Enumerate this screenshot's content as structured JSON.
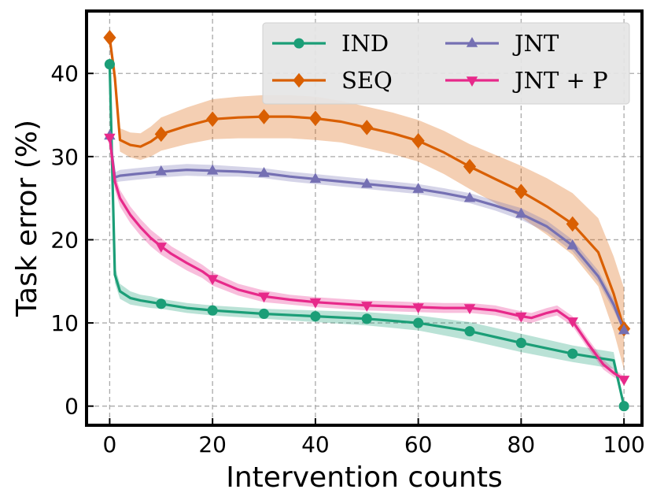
{
  "chart_data": {
    "type": "line",
    "title": "",
    "xlabel": "Intervention counts",
    "ylabel": "Task error (%)",
    "xlim": [
      -4.5,
      103.5
    ],
    "ylim": [
      -2.3,
      47.5
    ],
    "xticks": [
      0,
      20,
      40,
      60,
      80,
      100
    ],
    "yticks": [
      0,
      10,
      20,
      30,
      40
    ],
    "grid": true,
    "legend_position": "top-right",
    "series": [
      {
        "name": "IND",
        "color": "#1b9e77",
        "marker": "circle",
        "x": [
          0,
          1,
          2,
          4,
          6,
          8,
          10,
          15,
          20,
          30,
          40,
          50,
          60,
          70,
          80,
          90,
          98,
          100
        ],
        "y": [
          41.1,
          15.8,
          13.8,
          13.0,
          12.7,
          12.5,
          12.3,
          11.8,
          11.5,
          11.1,
          10.8,
          10.5,
          10.0,
          9.0,
          7.6,
          6.3,
          5.5,
          0.0
        ],
        "band": [
          0.2,
          1.0,
          0.9,
          0.8,
          0.7,
          0.7,
          0.6,
          0.6,
          0.6,
          0.6,
          0.7,
          0.8,
          0.9,
          1.1,
          1.1,
          1.0,
          1.0,
          0.1
        ],
        "marker_x": [
          0,
          10,
          20,
          30,
          40,
          50,
          60,
          70,
          80,
          90,
          100
        ]
      },
      {
        "name": "SEQ",
        "color": "#d95f02",
        "marker": "diamond",
        "x": [
          0,
          1,
          2,
          4,
          6,
          8,
          10,
          15,
          20,
          25,
          30,
          35,
          40,
          45,
          50,
          55,
          60,
          65,
          70,
          75,
          80,
          85,
          90,
          95,
          98,
          100
        ],
        "y": [
          44.3,
          39.5,
          32.0,
          31.4,
          31.2,
          31.8,
          32.7,
          33.7,
          34.5,
          34.7,
          34.8,
          34.8,
          34.6,
          34.2,
          33.5,
          32.8,
          31.9,
          30.5,
          28.8,
          27.3,
          25.8,
          24.0,
          21.9,
          18.5,
          13.5,
          9.3
        ],
        "band": [
          0.2,
          1.5,
          1.4,
          1.5,
          1.6,
          1.8,
          2.0,
          2.2,
          2.4,
          2.5,
          2.6,
          2.6,
          2.6,
          2.5,
          2.5,
          2.5,
          2.5,
          2.6,
          2.7,
          2.9,
          3.1,
          3.4,
          3.7,
          4.1,
          4.5,
          4.9
        ],
        "marker_x": [
          0,
          10,
          20,
          30,
          40,
          50,
          60,
          70,
          80,
          90,
          100
        ]
      },
      {
        "name": "JNT",
        "color": "#7570b3",
        "marker": "triangle-up",
        "x": [
          0,
          1,
          2,
          5,
          10,
          15,
          20,
          25,
          30,
          35,
          40,
          45,
          50,
          55,
          60,
          65,
          70,
          75,
          80,
          85,
          90,
          95,
          98,
          100
        ],
        "y": [
          32.5,
          27.5,
          27.7,
          27.9,
          28.2,
          28.4,
          28.3,
          28.2,
          28.0,
          27.6,
          27.3,
          27.0,
          26.7,
          26.4,
          26.1,
          25.6,
          25.0,
          24.1,
          23.1,
          21.6,
          19.3,
          15.6,
          12.2,
          9.1
        ],
        "band": [
          0.2,
          0.6,
          0.7,
          0.7,
          0.7,
          0.7,
          0.7,
          0.6,
          0.6,
          0.6,
          0.6,
          0.6,
          0.6,
          0.6,
          0.6,
          0.6,
          0.6,
          0.6,
          0.7,
          0.7,
          0.7,
          0.7,
          0.7,
          0.3
        ],
        "marker_x": [
          0,
          10,
          20,
          30,
          40,
          50,
          60,
          70,
          80,
          90,
          100
        ]
      },
      {
        "name": "JNT + P",
        "color": "#e7298a",
        "marker": "triangle-down",
        "x": [
          0,
          1,
          2,
          4,
          6,
          8,
          10,
          12,
          15,
          18,
          20,
          25,
          30,
          35,
          40,
          45,
          50,
          55,
          60,
          65,
          70,
          75,
          80,
          82,
          85,
          87,
          90,
          93,
          96,
          98,
          100
        ],
        "y": [
          32.3,
          27.0,
          25.0,
          23.0,
          21.5,
          20.2,
          19.2,
          18.3,
          17.2,
          16.2,
          15.3,
          14.0,
          13.2,
          12.8,
          12.5,
          12.3,
          12.1,
          12.0,
          11.9,
          11.8,
          11.8,
          11.5,
          10.8,
          10.6,
          11.2,
          11.5,
          10.2,
          7.5,
          5.0,
          4.0,
          3.2
        ],
        "band": [
          0.2,
          1.0,
          1.0,
          1.0,
          1.0,
          1.0,
          1.0,
          0.9,
          0.9,
          0.8,
          0.8,
          0.7,
          0.7,
          0.6,
          0.6,
          0.6,
          0.6,
          0.6,
          0.6,
          0.6,
          0.6,
          0.6,
          0.6,
          0.6,
          0.6,
          0.6,
          0.6,
          0.6,
          0.6,
          0.5,
          0.4
        ],
        "marker_x": [
          0,
          10,
          20,
          30,
          40,
          50,
          60,
          70,
          80,
          90,
          100
        ]
      }
    ]
  }
}
